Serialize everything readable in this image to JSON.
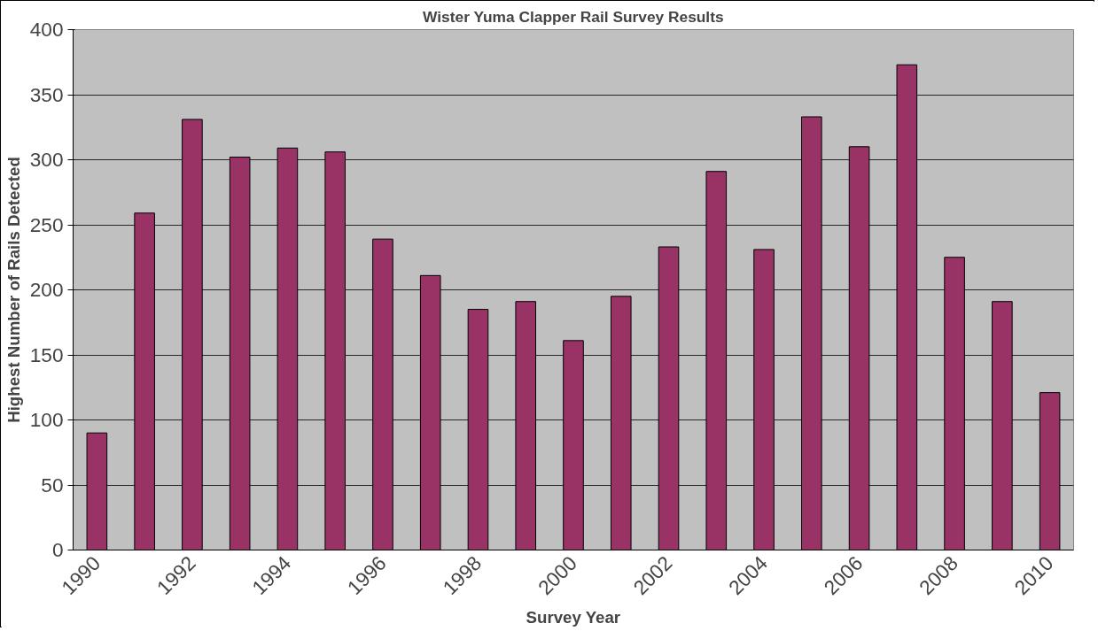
{
  "chart_data": {
    "type": "bar",
    "title": "Wister Yuma Clapper Rail Survey Results",
    "xlabel": "Survey Year",
    "ylabel": "Highest Number of Rails Detected",
    "categories": [
      "1990",
      null,
      "1992",
      null,
      "1994",
      null,
      "1996",
      null,
      "1998",
      null,
      "2000",
      null,
      "2002",
      null,
      "2004",
      null,
      "2006",
      null,
      "2008",
      null,
      "2010"
    ],
    "values": [
      90,
      259,
      331,
      302,
      309,
      306,
      239,
      211,
      185,
      191,
      161,
      195,
      233,
      291,
      231,
      333,
      310,
      373,
      225,
      191,
      121
    ],
    "color": "#993366",
    "ylim": [
      0,
      400
    ],
    "yticks": [
      0,
      50,
      100,
      150,
      200,
      250,
      300,
      350,
      400
    ],
    "grid": "y"
  }
}
